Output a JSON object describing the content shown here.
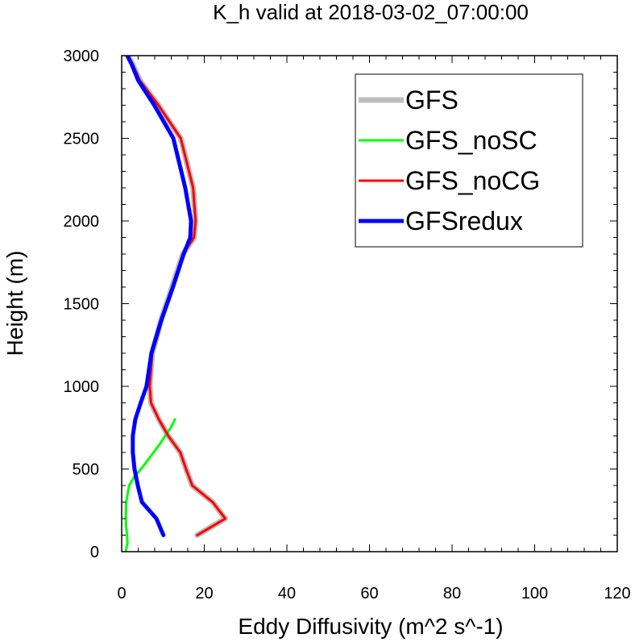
{
  "chart_data": {
    "type": "line",
    "title": "K_h valid at 2018-03-02_07:00:00",
    "xlabel": "Eddy Diffusivity (m^2 s^-1)",
    "ylabel": "Height (m)",
    "xlim": [
      0,
      120
    ],
    "ylim": [
      0,
      3000
    ],
    "xticks": [
      "0",
      "20",
      "40",
      "60",
      "80",
      "100",
      "120"
    ],
    "yticks": [
      "0",
      "500",
      "1000",
      "1500",
      "2000",
      "2500",
      "3000"
    ],
    "legend_position": "top-right",
    "grid": false,
    "series": [
      {
        "name": "GFS",
        "color": "#bdbdbd",
        "width": 7,
        "x": [
          18.3,
          25.1,
          22.0,
          17.1,
          15.6,
          14.2,
          11.3,
          9.0,
          7.1,
          6.8,
          7.4,
          9.5,
          12.2,
          14.8,
          17.5,
          17.9,
          17.3,
          14.3,
          8.9,
          4.4,
          2.6,
          1.4
        ],
        "y": [
          100,
          200,
          300,
          400,
          500,
          600,
          700,
          800,
          900,
          1000,
          1200,
          1400,
          1600,
          1800,
          1900,
          2000,
          2200,
          2500,
          2700,
          2850,
          2950,
          3000
        ]
      },
      {
        "name": "GFS_noSC",
        "color": "#00ff00",
        "width": 3,
        "x": [
          12.9,
          11.9,
          10.5,
          9.2,
          7.7,
          6.2,
          4.7,
          3.0,
          1.8,
          1.1,
          1.0,
          1.1,
          1.3,
          1.4,
          1.2,
          1.1,
          1.0
        ],
        "y": [
          800,
          750,
          700,
          650,
          600,
          550,
          500,
          450,
          400,
          300,
          200,
          150,
          100,
          50,
          30,
          15,
          0
        ]
      },
      {
        "name": "GFS_noCG",
        "color": "#ff0000",
        "width": 3,
        "x": [
          18.3,
          25.1,
          22.0,
          17.1,
          15.6,
          14.2,
          11.3,
          9.0,
          7.1,
          6.8,
          7.4,
          9.5,
          12.2,
          14.8,
          17.5,
          17.9,
          17.3,
          14.3,
          8.9,
          4.4,
          2.6,
          1.4
        ],
        "y": [
          100,
          200,
          300,
          400,
          500,
          600,
          700,
          800,
          900,
          1000,
          1200,
          1400,
          1600,
          1800,
          1900,
          2000,
          2200,
          2500,
          2700,
          2850,
          2950,
          3000
        ]
      },
      {
        "name": "GFSredux",
        "color": "#0000ff",
        "width": 5,
        "x": [
          10.1,
          8.4,
          4.9,
          3.9,
          3.1,
          2.7,
          2.7,
          3.3,
          4.6,
          6.0,
          7.2,
          9.6,
          12.4,
          15.0,
          16.6,
          16.8,
          15.4,
          12.5,
          7.9,
          4.0,
          2.4,
          1.4
        ],
        "y": [
          100,
          200,
          300,
          400,
          500,
          600,
          700,
          800,
          900,
          1000,
          1200,
          1400,
          1600,
          1800,
          1900,
          2000,
          2200,
          2500,
          2700,
          2850,
          2950,
          3000
        ]
      }
    ]
  }
}
